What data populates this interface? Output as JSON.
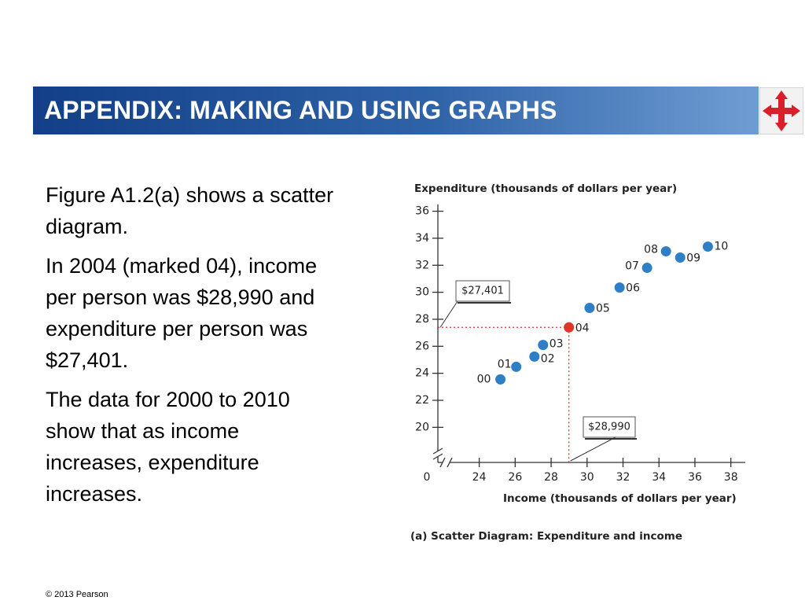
{
  "header": {
    "title": "APPENDIX: MAKING AND USING GRAPHS"
  },
  "body": {
    "paragraphs": [
      "Figure A1.2(a) shows a scatter diagram.",
      "In 2004 (marked 04), income per person was $28,990 and expenditure per person was $27,401.",
      "The data for 2000 to 2010 show that as income increases, expenditure increases."
    ]
  },
  "footer": {
    "copyright": "© 2013 Pearson"
  },
  "chart_data": {
    "type": "scatter",
    "y_label": "Expenditure (thousands of dollars per year)",
    "x_label": "Income (thousands of dollars per year)",
    "caption": "(a)  Scatter Diagram: Expenditure and income",
    "origin_label": "0",
    "labels": [
      "00",
      "01",
      "02",
      "03",
      "04",
      "05",
      "06",
      "07",
      "08",
      "09",
      "10"
    ],
    "x": [
      25.18,
      26.06,
      27.07,
      27.55,
      28.99,
      30.14,
      31.81,
      33.34,
      34.39,
      35.18,
      36.72
    ],
    "values": [
      23.55,
      24.48,
      25.24,
      26.1,
      27.401,
      28.84,
      30.35,
      31.81,
      33.03,
      32.57,
      33.38
    ],
    "colors": [
      "#2f7fc6",
      "#2f7fc6",
      "#2f7fc6",
      "#2f7fc6",
      "#e0352b",
      "#2f7fc6",
      "#2f7fc6",
      "#2f7fc6",
      "#2f7fc6",
      "#2f7fc6",
      "#2f7fc6"
    ],
    "xlim": [
      21.7,
      38.8
    ],
    "ylim": [
      17.4,
      36.5
    ],
    "xticks": [
      24,
      26,
      28,
      30,
      32,
      34,
      36,
      38
    ],
    "yticks": [
      20,
      22,
      24,
      26,
      28,
      30,
      32,
      34,
      36
    ],
    "annotations": [
      {
        "label": "$27,401",
        "axis": "y",
        "value": 27.401
      },
      {
        "label": "$28,990",
        "axis": "x",
        "value": 28.99
      }
    ]
  }
}
